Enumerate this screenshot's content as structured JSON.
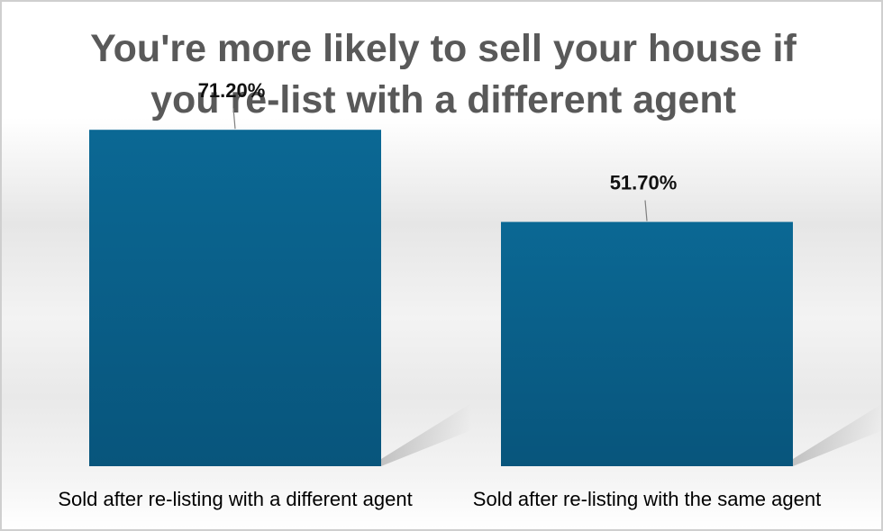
{
  "chart_data": {
    "type": "bar",
    "title": "You're more likely to sell your house if you re-list with a different agent",
    "categories": [
      "Sold after re-listing with a different agent",
      "Sold after re-listing with the same agent"
    ],
    "values": [
      71.2,
      51.7
    ],
    "data_labels": [
      "71.20%",
      "51.70%"
    ],
    "ylim": [
      0,
      80
    ],
    "grid": false,
    "legend": "none",
    "bar_color": "#0a5d87"
  }
}
